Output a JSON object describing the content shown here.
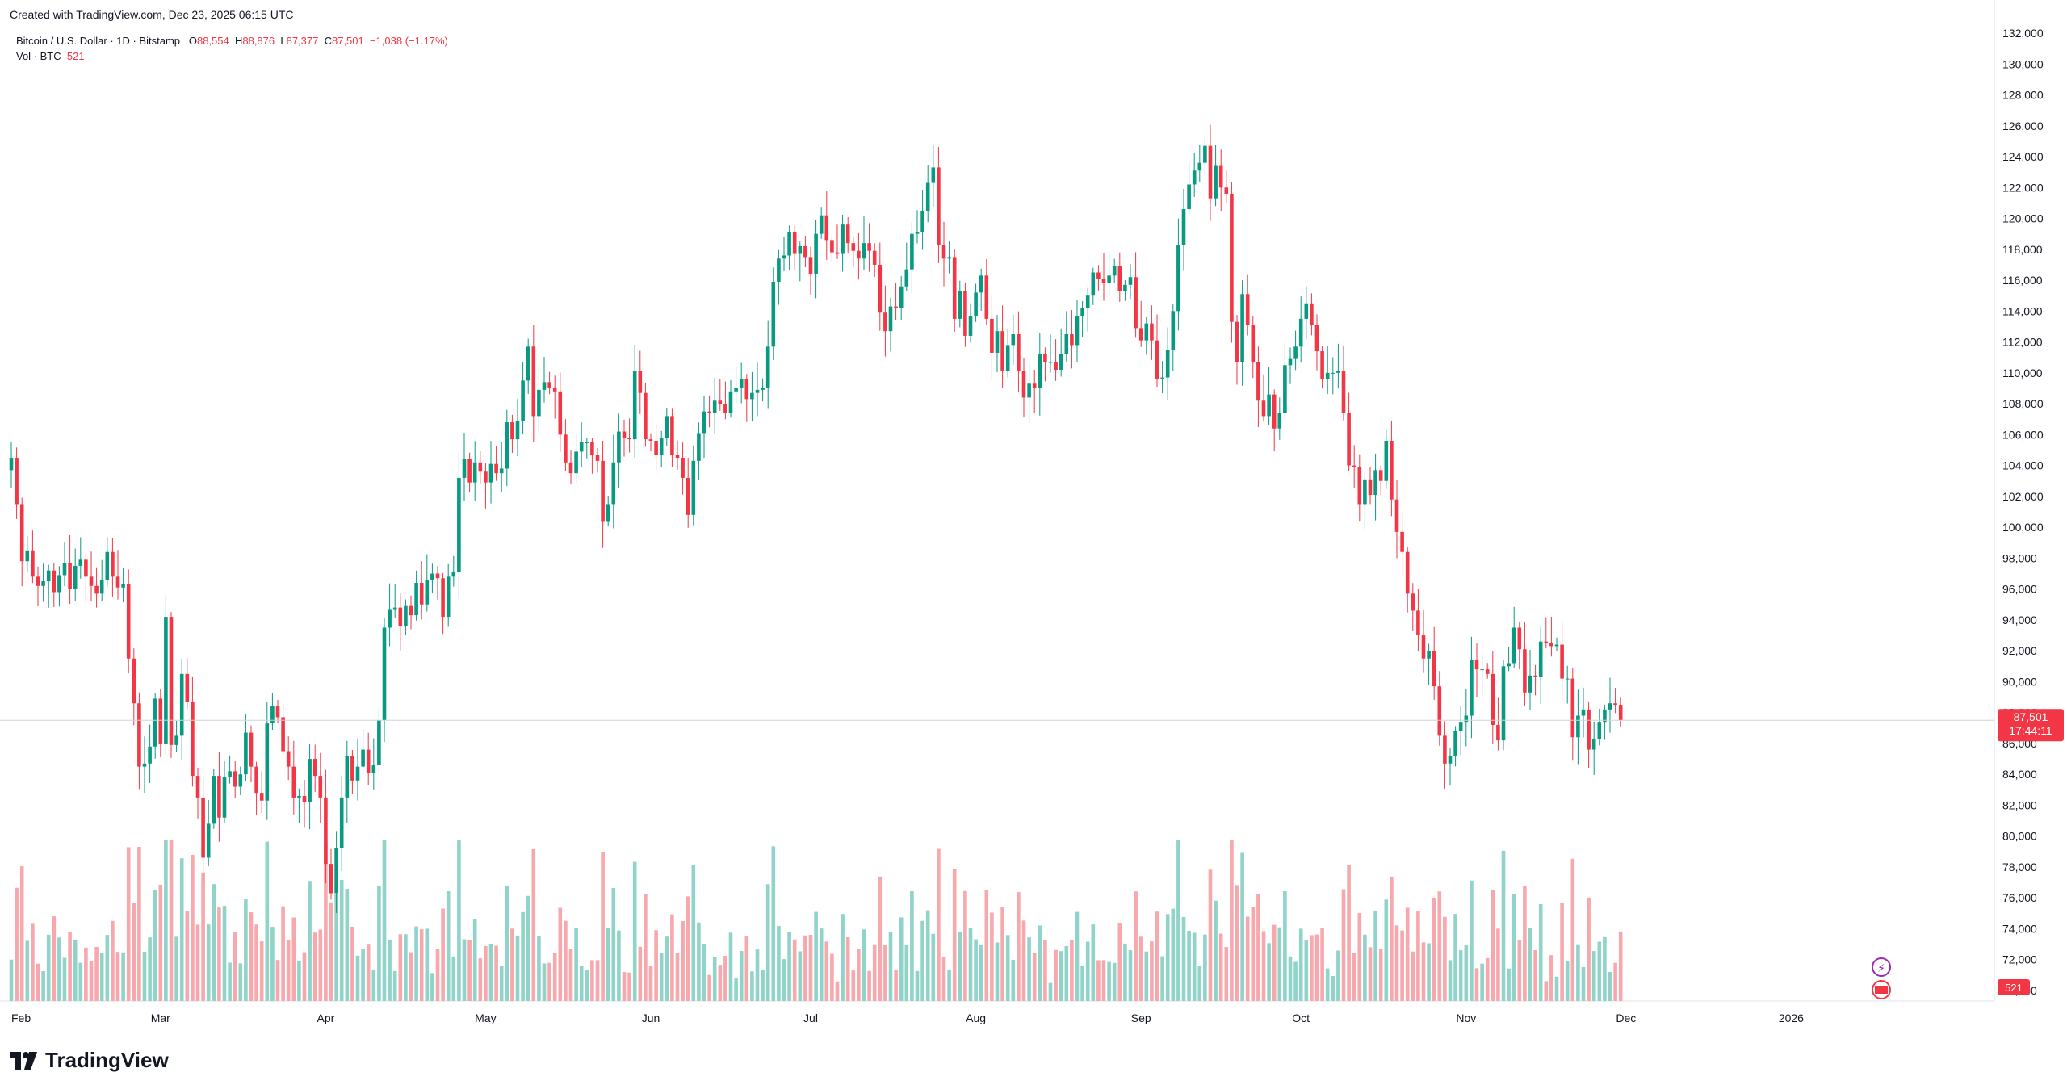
{
  "header": {
    "created_text": "Created with TradingView.com, Dec 23, 2025 06:15 UTC"
  },
  "legend": {
    "symbol": "Bitcoin / U.S. Dollar · 1D · Bitstamp",
    "o_label": "O",
    "o_value": "88,554",
    "h_label": "H",
    "h_value": "88,876",
    "l_label": "L",
    "l_value": "87,377",
    "c_label": "C",
    "c_value": "87,501",
    "change": "−1,038 (−1.17%)",
    "vol_label": "Vol · BTC",
    "vol_value": "521"
  },
  "price_tag": {
    "value": "87,501",
    "countdown": "17:44:11"
  },
  "volume_tag": {
    "value": "521"
  },
  "footer": {
    "brand": "TradingView"
  },
  "colors": {
    "up": "#089981",
    "down": "#f23645",
    "up_vol": "#8fd3c9",
    "down_vol": "#f7a8ad",
    "axis_text": "#131722"
  },
  "chart_data": {
    "type": "candlestick",
    "y_ticks": [
      "132,000",
      "130,000",
      "128,000",
      "126,000",
      "124,000",
      "122,000",
      "120,000",
      "118,000",
      "116,000",
      "114,000",
      "112,000",
      "110,000",
      "108,000",
      "106,000",
      "104,000",
      "102,000",
      "100,000",
      "98,000",
      "96,000",
      "94,000",
      "92,000",
      "90,000",
      "88,000",
      "86,000",
      "84,000",
      "82,000",
      "80,000",
      "78,000",
      "76,000",
      "74,000",
      "72,000",
      "70,000"
    ],
    "ylim": [
      70000,
      132000
    ],
    "x_ticks": [
      {
        "label": "Feb",
        "day": 0
      },
      {
        "label": "Mar",
        "day": 28
      },
      {
        "label": "Apr",
        "day": 59
      },
      {
        "label": "May",
        "day": 89
      },
      {
        "label": "Jun",
        "day": 120
      },
      {
        "label": "Jul",
        "day": 150
      },
      {
        "label": "Aug",
        "day": 181
      },
      {
        "label": "Sep",
        "day": 212
      },
      {
        "label": "Oct",
        "day": 242
      },
      {
        "label": "Nov",
        "day": 273
      },
      {
        "label": "Dec",
        "day": 303
      },
      {
        "label": "2026",
        "day": 334
      }
    ],
    "x_start": "2025-02-01",
    "close_series": [
      104500,
      101500,
      97800,
      98500,
      96800,
      96200,
      96500,
      97200,
      95800,
      96900,
      97700,
      96000,
      97500,
      97900,
      96800,
      96200,
      95700,
      96600,
      98400,
      96800,
      96100,
      96300,
      91500,
      88600,
      84500,
      84700,
      85800,
      88900,
      86000,
      94200,
      85900,
      86500,
      90500,
      88700,
      83900,
      82500,
      78600,
      80800,
      83900,
      81200,
      83800,
      84200,
      83200,
      84000,
      86700,
      84500,
      82800,
      82300,
      87300,
      88400,
      87700,
      85500,
      84500,
      82500,
      82600,
      82200,
      85000,
      83900,
      82500,
      78200,
      76300,
      79200,
      82500,
      85200,
      83600,
      84500,
      85600,
      84100,
      84600,
      87500,
      93500,
      94700,
      94800,
      93600,
      94900,
      94300,
      96400,
      95000,
      96600,
      97000,
      96700,
      94200,
      96800,
      97100,
      103200,
      104400,
      102900,
      104200,
      103600,
      102900,
      104100,
      103500,
      103800,
      106800,
      105700,
      106900,
      109500,
      111700,
      107200,
      108900,
      109400,
      109000,
      108800,
      106000,
      104200,
      103500,
      104900,
      105500,
      105500,
      104700,
      104300,
      100400,
      101500,
      104200,
      106200,
      105800,
      105700,
      110100,
      108700,
      105700,
      105600,
      104700,
      105800,
      107200,
      104700,
      104500,
      103200,
      100800,
      104300,
      106100,
      107500,
      107400,
      108200,
      108000,
      107400,
      108800,
      109000,
      109600,
      108300,
      108700,
      108900,
      109000,
      111700,
      115900,
      117400,
      117600,
      119100,
      117700,
      118200,
      117500,
      116400,
      119000,
      120200,
      118600,
      117800,
      117700,
      119600,
      118400,
      117900,
      117400,
      118400,
      117900,
      117000,
      113900,
      112700,
      114300,
      114200,
      115600,
      116700,
      119000,
      119100,
      120500,
      122300,
      123300,
      118300,
      117400,
      117500,
      113500,
      115300,
      112400,
      113700,
      115200,
      116300,
      113500,
      111300,
      112700,
      110100,
      111800,
      112500,
      110100,
      108400,
      109300,
      109000,
      111200,
      110700,
      110700,
      110200,
      111200,
      112500,
      111800,
      113700,
      114200,
      115000,
      116500,
      116100,
      115800,
      116300,
      116900,
      115300,
      115700,
      116200,
      112900,
      112100,
      113200,
      112100,
      109600,
      109700,
      111500,
      114000,
      118300,
      120600,
      122200,
      123100,
      123600,
      124700,
      121300,
      123400,
      122000,
      121600,
      113300,
      110700,
      115100,
      113100,
      110700,
      108200,
      107200,
      108600,
      106400,
      107400,
      110500,
      110900,
      111700,
      113500,
      114500,
      113100,
      111400,
      109600,
      110000,
      110000,
      110100,
      107400,
      104000,
      103900,
      101500,
      103100,
      102100,
      103700,
      103000,
      105600,
      101800,
      99700,
      98400,
      95700,
      94600,
      93000,
      91500,
      92000,
      89700,
      86500,
      84700,
      85200,
      86800,
      87400,
      87800,
      91400,
      90800,
      90800,
      90500,
      87200,
      86200,
      91000,
      91200,
      93500,
      92100,
      89300,
      90400,
      90300,
      92600,
      92500,
      92300,
      92400,
      90200,
      90200,
      86400,
      87800,
      88200,
      85600,
      86300,
      87400,
      88200,
      88600,
      88500,
      87500
    ],
    "volume_bars": 522,
    "last_price": 87501
  }
}
